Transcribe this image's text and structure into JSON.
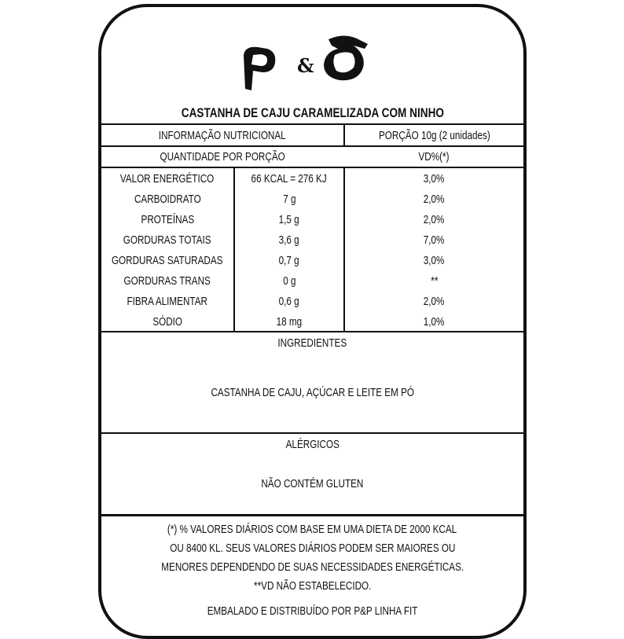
{
  "brand_logo": "P&D",
  "product_title": "CASTANHA DE CAJU CARAMELIZADA COM NINHO",
  "header": {
    "info": "INFORMAÇÃO NUTRICIONAL",
    "portion": "PORÇÃO 10g (2 unidades)"
  },
  "subheader": {
    "quantity": "QUANTIDADE POR PORÇÃO",
    "vd": "VD%(*)"
  },
  "rows": [
    {
      "name": "VALOR ENERGÉTICO",
      "amount": "66 KCAL = 276 KJ",
      "vd": "3,0%"
    },
    {
      "name": "CARBOIDRATO",
      "amount": "7 g",
      "vd": "2,0%"
    },
    {
      "name": "PROTEÍNAS",
      "amount": "1,5 g",
      "vd": "2,0%"
    },
    {
      "name": "GORDURAS TOTAIS",
      "amount": "3,6 g",
      "vd": "7,0%"
    },
    {
      "name": "GORDURAS SATURADAS",
      "amount": "0,7 g",
      "vd": "3,0%"
    },
    {
      "name": "GORDURAS TRANS",
      "amount": "0 g",
      "vd": "**"
    },
    {
      "name": "FIBRA ALIMENTAR",
      "amount": "0,6 g",
      "vd": "2,0%"
    },
    {
      "name": "SÓDIO",
      "amount": "18 mg",
      "vd": "1,0%"
    }
  ],
  "ingredients": {
    "label": "INGREDIENTES",
    "text": "CASTANHA DE CAJU, AÇÚCAR E LEITE EM PÓ"
  },
  "allergens": {
    "label": "ALÉRGICOS",
    "text": "NÃO CONTÉM GLUTEN"
  },
  "footnote": [
    "(*) % VALORES DIÁRIOS COM BASE EM UMA DIETA DE 2000 KCAL",
    "OU 8400 KL. SEUS VALORES DIÁRIOS PODEM SER MAIORES OU",
    "MENORES DEPENDENDO DE SUAS NECESSIDADES ENERGÉTICAS.",
    "**VD NÃO ESTABELECIDO."
  ],
  "distributor": "EMBALADO E DISTRIBUÍDO POR P&P LINHA FIT"
}
